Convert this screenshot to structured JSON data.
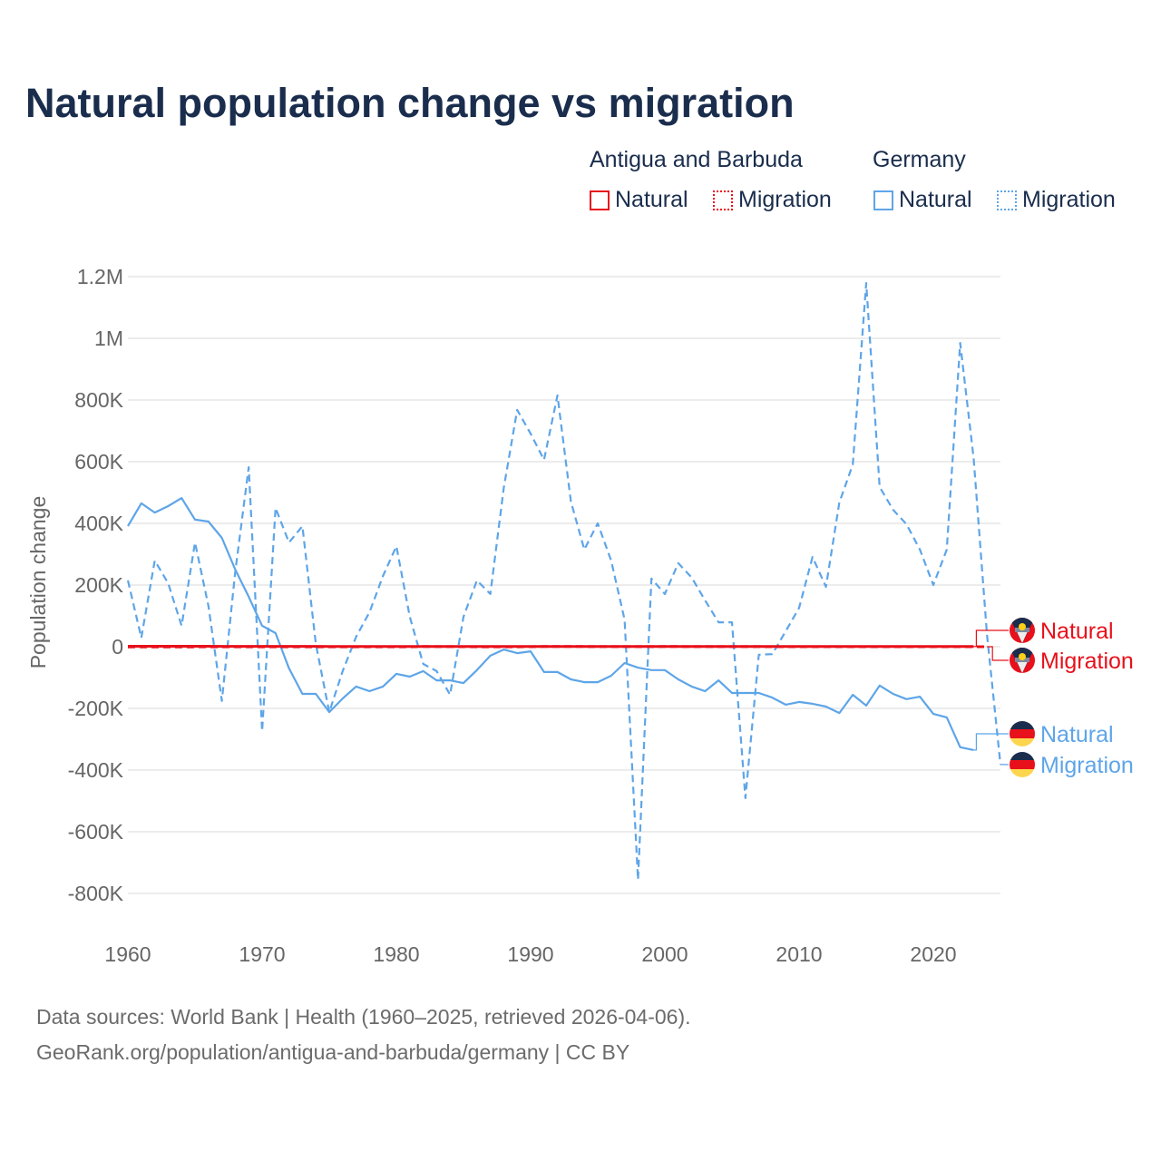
{
  "title": "Natural population change vs migration",
  "legend": {
    "groups": [
      {
        "name": "Antigua and Barbuda",
        "color": "#e8101a",
        "items": [
          "Natural",
          "Migration"
        ]
      },
      {
        "name": "Germany",
        "color": "#5ea5e8",
        "items": [
          "Natural",
          "Migration"
        ]
      }
    ]
  },
  "footer": {
    "line1": "Data sources: World Bank | Health (1960–2025, retrieved 2026-04-06).",
    "line2": "GeoRank.org/population/antigua-and-barbuda/germany | CC BY"
  },
  "chart_data": {
    "type": "line",
    "title": "Natural population change vs migration",
    "xlabel": "",
    "ylabel": "Population change",
    "unit": "thousands",
    "xlim": [
      1960,
      2025
    ],
    "ylim": [
      -850,
      1250
    ],
    "x_ticks": [
      1960,
      1970,
      1980,
      1990,
      2000,
      2010,
      2020
    ],
    "x_tick_labels": [
      "1960",
      "1970",
      "1980",
      "1990",
      "2000",
      "2010",
      "2020"
    ],
    "y_ticks": [
      1200,
      1000,
      800,
      600,
      400,
      200,
      0,
      -200,
      -400,
      -600,
      -800
    ],
    "y_tick_labels": [
      "1.2M",
      "1M",
      "800K",
      "600K",
      "400K",
      "200K",
      "0",
      "-200K",
      "-400K",
      "-600K",
      "-800K"
    ],
    "grid": true,
    "series": [
      {
        "name": "Natural",
        "country": "Antigua and Barbuda",
        "color": "#e8101a",
        "dash": false,
        "start": 1960,
        "values": [
          1.6,
          1.6,
          1.6,
          1.5,
          1.5,
          1.4,
          1.4,
          1.3,
          1.3,
          1.2,
          1.2,
          1.2,
          1.1,
          1.1,
          1.1,
          1.0,
          1.0,
          1.0,
          1.0,
          1.0,
          1.0,
          1.0,
          1.0,
          1.0,
          1.0,
          1.0,
          1.0,
          1.0,
          1.0,
          1.0,
          1.0,
          1.0,
          1.0,
          1.0,
          1.0,
          1.0,
          1.0,
          1.0,
          1.0,
          1.0,
          1.0,
          1.0,
          0.9,
          0.9,
          0.9,
          0.9,
          0.9,
          0.9,
          0.9,
          0.9,
          0.9,
          0.9,
          0.8,
          0.8,
          0.8,
          0.8,
          0.8,
          0.7,
          0.7,
          0.7,
          0.6,
          0.6,
          0.6,
          0.6
        ]
      },
      {
        "name": "Migration",
        "country": "Antigua and Barbuda",
        "color": "#e8101a",
        "dash": true,
        "start": 1960,
        "values": [
          -0.5,
          -0.5,
          -0.5,
          -0.5,
          -0.5,
          -0.5,
          -0.4,
          -0.4,
          -0.4,
          -0.3,
          -0.3,
          -0.3,
          -0.3,
          -0.3,
          -0.3,
          -0.3,
          -0.3,
          -0.3,
          -0.2,
          -0.2,
          -0.2,
          -0.2,
          0.5,
          0.3,
          0.2,
          0.1,
          -0.2,
          -0.3,
          -0.3,
          -0.2,
          -0.1,
          0.5,
          0.8,
          0.6,
          0.5,
          0.4,
          0.3,
          0.2,
          0.3,
          0.4,
          0.5,
          0.5,
          0.4,
          0.3,
          0.2,
          0.2,
          0.2,
          0.2,
          0.1,
          0.1,
          0.1,
          0.1,
          0.1,
          0.1,
          0.1,
          0.1,
          0.1,
          0.1,
          0.1,
          0.1,
          0.1,
          0.1,
          0.1,
          0.1,
          0.1
        ]
      },
      {
        "name": "Natural",
        "country": "Germany",
        "color": "#5ea5e8",
        "dash": false,
        "start": 1960,
        "values": [
          391,
          465,
          435,
          456,
          482,
          412,
          406,
          353,
          250,
          162,
          68,
          44,
          -70,
          -153,
          -153,
          -212,
          -168,
          -129,
          -144,
          -129,
          -88,
          -97,
          -79,
          -109,
          -109,
          -118,
          -76,
          -29,
          -9,
          -21,
          -15,
          -82,
          -82,
          -106,
          -115,
          -115,
          -94,
          -53,
          -68,
          -76,
          -76,
          -106,
          -129,
          -144,
          -109,
          -150,
          -150,
          -150,
          -165,
          -188,
          -179,
          -185,
          -194,
          -215,
          -156,
          -191,
          -126,
          -153,
          -170,
          -162,
          -218,
          -229,
          -326,
          -335
        ]
      },
      {
        "name": "Migration",
        "country": "Germany",
        "color": "#5ea5e8",
        "dash": true,
        "start": 1960,
        "values": [
          215,
          29,
          279,
          206,
          68,
          338,
          132,
          -176,
          244,
          582,
          -274,
          450,
          338,
          391,
          9,
          -212,
          -79,
          32,
          112,
          229,
          326,
          97,
          -56,
          -79,
          -156,
          97,
          215,
          171,
          515,
          768,
          691,
          606,
          815,
          471,
          315,
          400,
          279,
          88,
          -756,
          221,
          171,
          271,
          224,
          150,
          79,
          79,
          -491,
          -26,
          -24,
          50,
          126,
          291,
          194,
          468,
          591,
          1179,
          518,
          444,
          397,
          315,
          200,
          315,
          985,
          612,
          38,
          -382
        ]
      }
    ],
    "end_labels": [
      "Natural",
      "Migration",
      "Natural",
      "Migration"
    ],
    "legend_position": "top-right"
  }
}
